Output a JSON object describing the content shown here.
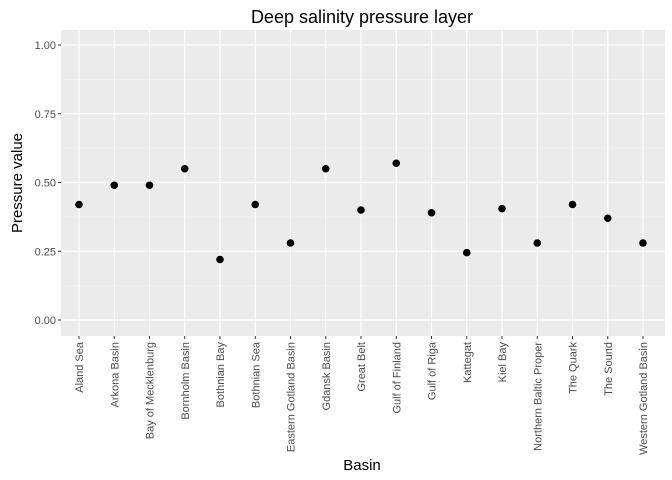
{
  "chart_data": {
    "type": "scatter",
    "title": "Deep salinity pressure layer",
    "xlabel": "Basin",
    "ylabel": "Pressure value",
    "ylim": [
      0,
      1
    ],
    "yticks": [
      "0.00",
      "0.25",
      "0.50",
      "0.75",
      "1.00"
    ],
    "ytick_values": [
      0,
      0.25,
      0.5,
      0.75,
      1
    ],
    "grid": true,
    "legend": "none",
    "colors": {
      "panel_background": "#ebebeb",
      "grid_major": "#ffffff",
      "grid_minor": "#f5f5f5",
      "point": "#000000"
    },
    "categories": [
      "Aland Sea",
      "Arkona Basin",
      "Bay of Mecklenburg",
      "Bornholm Basin",
      "Bothnian Bay",
      "Bothnian Sea",
      "Eastern Gotland Basin",
      "Gdansk Basin",
      "Great Belt",
      "Gulf of Finland",
      "Gulf of Riga",
      "Kattegat",
      "Kiel Bay",
      "Northern Baltic Proper",
      "The Quark",
      "The Sound",
      "Western Gotland Basin"
    ],
    "values": [
      0.42,
      0.49,
      0.49,
      0.55,
      0.22,
      0.42,
      0.28,
      0.55,
      0.4,
      0.57,
      0.39,
      0.245,
      0.405,
      0.28,
      0.42,
      0.37,
      0.28
    ]
  }
}
